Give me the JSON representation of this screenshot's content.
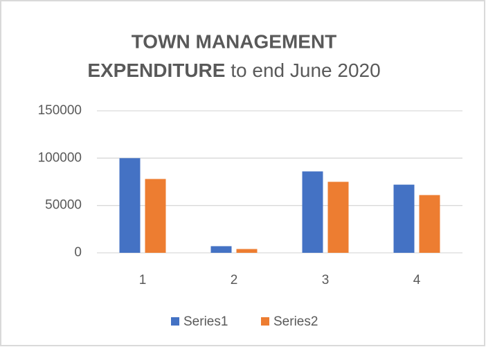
{
  "chart_data": {
    "type": "bar",
    "title": [
      "TOWN MANAGEMENT",
      "EXPENDITURE",
      "to end June 2020"
    ],
    "categories": [
      "1",
      "2",
      "3",
      "4"
    ],
    "series": [
      {
        "name": "Series1",
        "color": "#4472c4",
        "values": [
          100000,
          7000,
          86000,
          72000
        ]
      },
      {
        "name": "Series2",
        "color": "#ed7d31",
        "values": [
          78000,
          4000,
          75000,
          61000
        ]
      }
    ],
    "ylim": [
      0,
      150000
    ],
    "yticks": [
      0,
      50000,
      100000,
      150000
    ],
    "grid": true,
    "legend": "bottom"
  }
}
